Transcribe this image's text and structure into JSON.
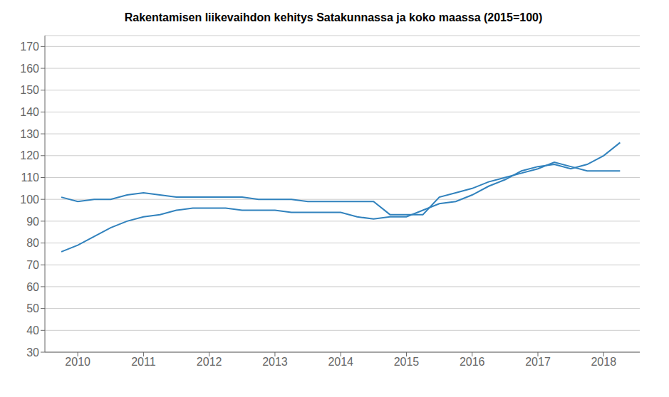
{
  "chart_data": {
    "type": "line",
    "title": "Rakentamisen liikevaihdon kehitys Satakunnassa ja koko maassa (2015=100)",
    "x": [
      2009.75,
      2010.0,
      2010.25,
      2010.5,
      2010.75,
      2011.0,
      2011.25,
      2011.5,
      2011.75,
      2012.0,
      2012.25,
      2012.5,
      2012.75,
      2013.0,
      2013.25,
      2013.5,
      2013.75,
      2014.0,
      2014.25,
      2014.5,
      2014.75,
      2015.0,
      2015.25,
      2015.5,
      2015.75,
      2016.0,
      2016.25,
      2016.5,
      2016.75,
      2017.0,
      2017.25,
      2017.5,
      2017.75,
      2018.0,
      2018.25
    ],
    "series": [
      {
        "values": [
          101,
          99,
          100,
          100,
          102,
          103,
          102,
          101,
          101,
          101,
          101,
          101,
          100,
          100,
          100,
          99,
          99,
          99,
          99,
          99,
          93,
          93,
          93,
          101,
          103,
          105,
          108,
          110,
          112,
          114,
          117,
          115,
          113,
          113,
          113
        ]
      },
      {
        "values": [
          76,
          79,
          83,
          87,
          90,
          92,
          93,
          95,
          96,
          96,
          96,
          95,
          95,
          95,
          94,
          94,
          94,
          94,
          92,
          91,
          92,
          92,
          95,
          98,
          99,
          102,
          106,
          109,
          113,
          115,
          116,
          114,
          116,
          120,
          126
        ]
      }
    ],
    "xlim": [
      2009.5,
      2018.55
    ],
    "xticks": [
      2010,
      2011,
      2012,
      2013,
      2014,
      2015,
      2016,
      2017,
      2018
    ],
    "ylim": [
      30,
      175
    ],
    "yticks": [
      30,
      40,
      50,
      60,
      70,
      80,
      90,
      100,
      110,
      120,
      130,
      140,
      150,
      160,
      170
    ],
    "grid": true
  }
}
